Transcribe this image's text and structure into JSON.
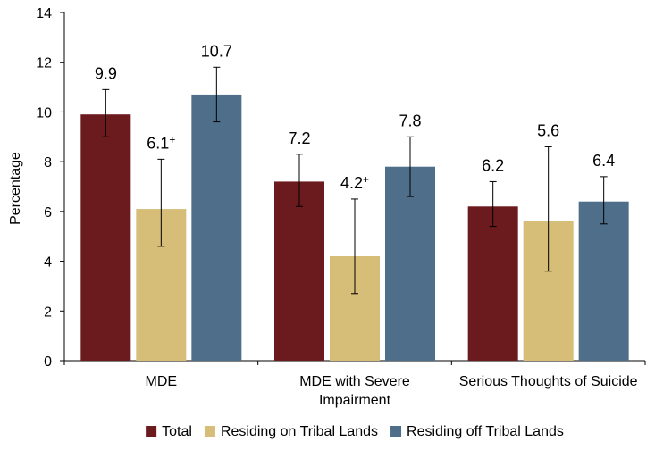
{
  "chart_data": {
    "type": "bar",
    "title": "",
    "xlabel": "",
    "ylabel": "Percentage",
    "ylim": [
      0,
      14
    ],
    "yticks": [
      0,
      2,
      4,
      6,
      8,
      10,
      12,
      14
    ],
    "categories": [
      {
        "lines": [
          "MDE"
        ]
      },
      {
        "lines": [
          "MDE with Severe",
          "Impairment"
        ]
      },
      {
        "lines": [
          "Serious Thoughts of Suicide"
        ]
      }
    ],
    "series": [
      {
        "name": "Total",
        "color": "#6b1a1d",
        "values": [
          9.9,
          7.2,
          6.2
        ],
        "error_low": [
          9.0,
          6.2,
          5.4
        ],
        "error_high": [
          10.9,
          8.3,
          7.2
        ],
        "labels": [
          {
            "text": "9.9",
            "sup": ""
          },
          {
            "text": "7.2",
            "sup": ""
          },
          {
            "text": "6.2",
            "sup": ""
          }
        ]
      },
      {
        "name": "Residing on Tribal Lands",
        "color": "#d6bd78",
        "values": [
          6.1,
          4.2,
          5.6
        ],
        "error_low": [
          4.6,
          2.7,
          3.6
        ],
        "error_high": [
          8.1,
          6.5,
          8.6
        ],
        "labels": [
          {
            "text": "6.1",
            "sup": "+"
          },
          {
            "text": "4.2",
            "sup": "+"
          },
          {
            "text": "5.6",
            "sup": ""
          }
        ]
      },
      {
        "name": "Residing off Tribal Lands",
        "color": "#4e6e8a",
        "values": [
          10.7,
          7.8,
          6.4
        ],
        "error_low": [
          9.6,
          6.6,
          5.5
        ],
        "error_high": [
          11.8,
          9.0,
          7.4
        ],
        "labels": [
          {
            "text": "10.7",
            "sup": ""
          },
          {
            "text": "7.8",
            "sup": ""
          },
          {
            "text": "6.4",
            "sup": ""
          }
        ]
      }
    ],
    "legend_position": "bottom"
  }
}
